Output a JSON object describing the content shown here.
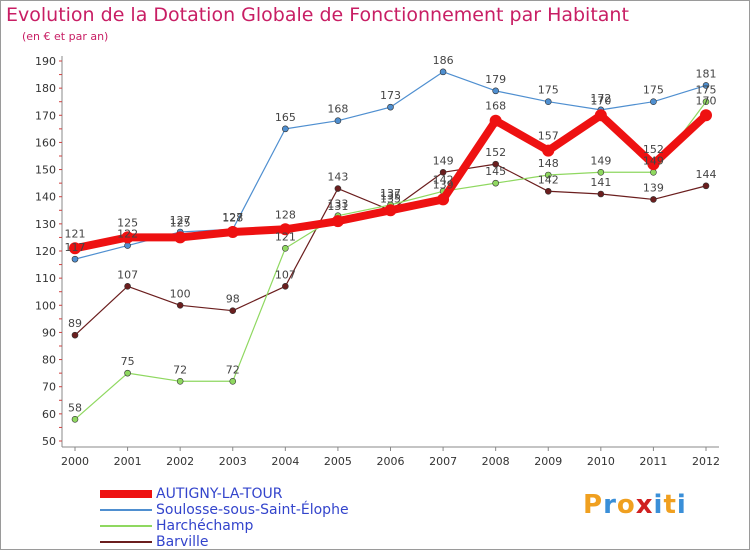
{
  "header": {
    "title": "Evolution de la Dotation Globale de Fonctionnement par Habitant",
    "subtitle": "(en € et par an)"
  },
  "logo": {
    "text": "Proxiti",
    "colors": [
      "#f0a020",
      "#3a8fd8",
      "#f0a020",
      "#d02020",
      "#3a8fd8",
      "#f0a020",
      "#3a8fd8"
    ]
  },
  "chart_data": {
    "type": "line",
    "title": "Evolution de la Dotation Globale de Fonctionnement par Habitant",
    "ylabel": "(en € et par an)",
    "xlabel": "",
    "x": [
      "2000",
      "2001",
      "2002",
      "2003",
      "2004",
      "2005",
      "2006",
      "2007",
      "2008",
      "2009",
      "2010",
      "2011",
      "2012"
    ],
    "ylim": [
      50,
      190
    ],
    "yticks": [
      50,
      60,
      70,
      80,
      90,
      100,
      110,
      120,
      130,
      140,
      150,
      160,
      170,
      180,
      190
    ],
    "grid": false,
    "legend": "bottom",
    "series": [
      {
        "name": "Barville",
        "color": "#6b1e1e",
        "width": 1.2,
        "marker": 3,
        "values": [
          89,
          107,
          100,
          98,
          107,
          143,
          135,
          149,
          152,
          142,
          141,
          139,
          144
        ],
        "labels": [
          "89",
          "107",
          "100",
          "98",
          "107",
          "143",
          "135",
          "149",
          "152",
          "142",
          "141",
          "139",
          "144"
        ]
      },
      {
        "name": "Harchéchamp",
        "color": "#8fd860",
        "width": 1.2,
        "marker": 3,
        "values": [
          58,
          75,
          72,
          72,
          121,
          133,
          137,
          142,
          145,
          148,
          149,
          149,
          175
        ],
        "labels": [
          "58",
          "75",
          "72",
          "72",
          "121",
          "133",
          "137",
          "142",
          "145",
          "148",
          "149",
          "149",
          "175"
        ]
      },
      {
        "name": "Soulosse-sous-Saint-Élophe",
        "color": "#4f8fd0",
        "width": 1.2,
        "marker": 3,
        "values": [
          117,
          122,
          127,
          128,
          165,
          168,
          173,
          186,
          179,
          175,
          172,
          175,
          181
        ],
        "labels": [
          "117",
          "122",
          "127",
          "128",
          "165",
          "168",
          "173",
          "186",
          "179",
          "175",
          "172",
          "175",
          "181"
        ]
      },
      {
        "name": "AUTIGNY-LA-TOUR",
        "color": "#ee1111",
        "width": 8,
        "marker": 6,
        "values": [
          121,
          125,
          125,
          127,
          128,
          131,
          135,
          139,
          168,
          157,
          170,
          152,
          170
        ],
        "labels": [
          "121",
          "125",
          "125",
          "127",
          "128",
          "131",
          "135",
          "139",
          "168",
          "157",
          "170",
          "152",
          "170"
        ]
      }
    ],
    "legend_order": [
      "AUTIGNY-LA-TOUR",
      "Soulosse-sous-Saint-Élophe",
      "Harchéchamp",
      "Barville"
    ]
  }
}
